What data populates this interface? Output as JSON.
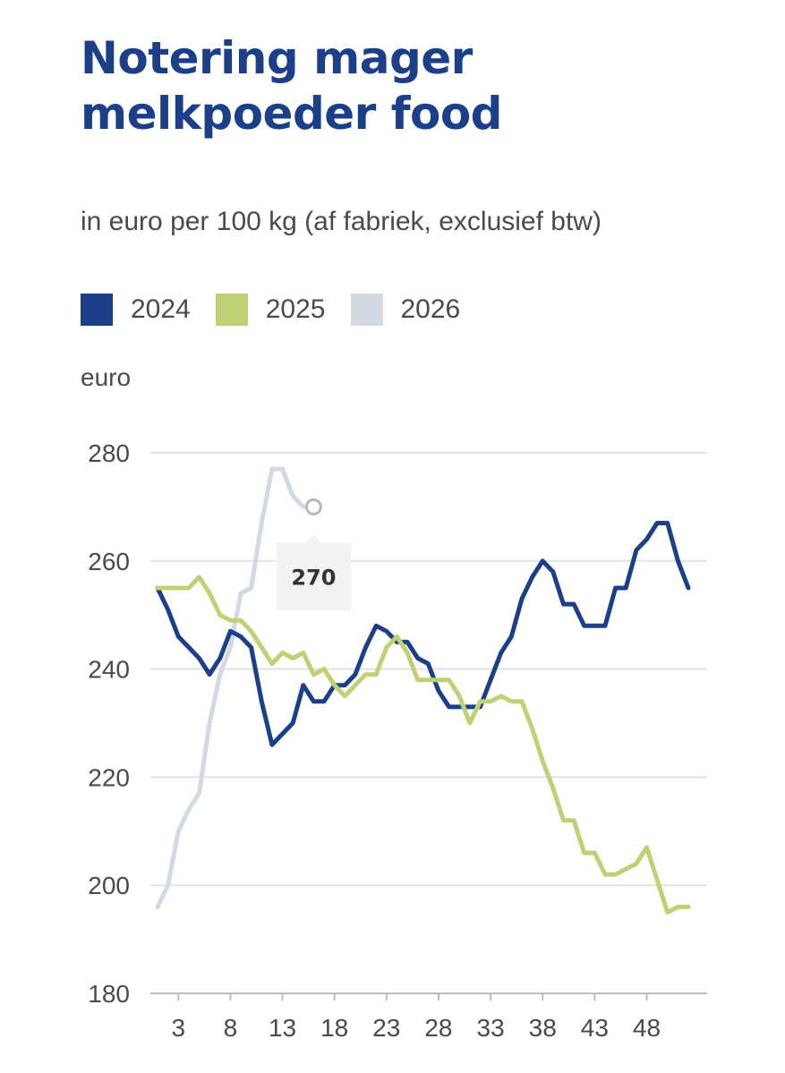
{
  "header": {
    "title_line1": "Notering mager",
    "title_line2": "melkpoeder food",
    "subtitle": "in euro per 100 kg (af fabriek, exclusief btw)"
  },
  "legend": [
    {
      "label": "2024",
      "color": "#1c3f8a"
    },
    {
      "label": "2025",
      "color": "#bfd175"
    },
    {
      "label": "2026",
      "color": "#d3d9e3"
    }
  ],
  "axis": {
    "y_unit": "euro"
  },
  "tooltip": {
    "value": "270",
    "series": "2026",
    "week": 16
  },
  "chart_data": {
    "type": "line",
    "x_label": "",
    "y_label": "euro",
    "xlim": [
      1,
      52
    ],
    "ylim": [
      180,
      280
    ],
    "x_ticks": [
      3,
      8,
      13,
      18,
      23,
      28,
      33,
      38,
      43,
      48
    ],
    "y_ticks": [
      180,
      200,
      220,
      240,
      260,
      280
    ],
    "grid": "horizontal",
    "legend_position": "top",
    "series": [
      {
        "name": "2024",
        "color": "#1c3f8a",
        "x": [
          1,
          2,
          3,
          4,
          5,
          6,
          7,
          8,
          9,
          10,
          11,
          12,
          13,
          14,
          15,
          16,
          17,
          18,
          19,
          20,
          21,
          22,
          23,
          24,
          25,
          26,
          27,
          28,
          29,
          30,
          31,
          32,
          33,
          34,
          35,
          36,
          37,
          38,
          39,
          40,
          41,
          42,
          43,
          44,
          45,
          46,
          47,
          48,
          49,
          50,
          51,
          52
        ],
        "y": [
          255,
          251,
          246,
          244,
          242,
          239,
          242,
          247,
          246,
          244,
          234,
          226,
          228,
          230,
          237,
          234,
          234,
          237,
          237,
          239,
          244,
          248,
          247,
          245,
          245,
          242,
          241,
          236,
          233,
          233,
          233,
          233,
          238,
          243,
          246,
          253,
          257,
          260,
          258,
          252,
          252,
          248,
          248,
          248,
          255,
          255,
          262,
          264,
          267,
          267,
          260,
          255
        ]
      },
      {
        "name": "2025",
        "color": "#bfd175",
        "x": [
          1,
          2,
          3,
          4,
          5,
          6,
          7,
          8,
          9,
          10,
          11,
          12,
          13,
          14,
          15,
          16,
          17,
          18,
          19,
          20,
          21,
          22,
          23,
          24,
          25,
          26,
          27,
          28,
          29,
          30,
          31,
          32,
          33,
          34,
          35,
          36,
          37,
          38,
          39,
          40,
          41,
          42,
          43,
          44,
          45,
          46,
          47,
          48,
          49,
          50,
          51,
          52
        ],
        "y": [
          255,
          255,
          255,
          255,
          257,
          254,
          250,
          249,
          249,
          247,
          244,
          241,
          243,
          242,
          243,
          239,
          240,
          237,
          235,
          237,
          239,
          239,
          244,
          246,
          243,
          238,
          238,
          238,
          238,
          235,
          230,
          234,
          234,
          235,
          234,
          234,
          229,
          223,
          218,
          212,
          212,
          206,
          206,
          202,
          202,
          203,
          204,
          207,
          201,
          195,
          196,
          196
        ]
      },
      {
        "name": "2026",
        "color": "#d3d9e3",
        "x": [
          1,
          2,
          3,
          4,
          5,
          6,
          7,
          8,
          9,
          10,
          11,
          12,
          13,
          14,
          15,
          16
        ],
        "y": [
          196,
          200,
          210,
          214,
          217,
          230,
          239,
          244,
          254,
          255,
          267,
          277,
          277,
          272,
          270,
          270
        ]
      }
    ]
  }
}
